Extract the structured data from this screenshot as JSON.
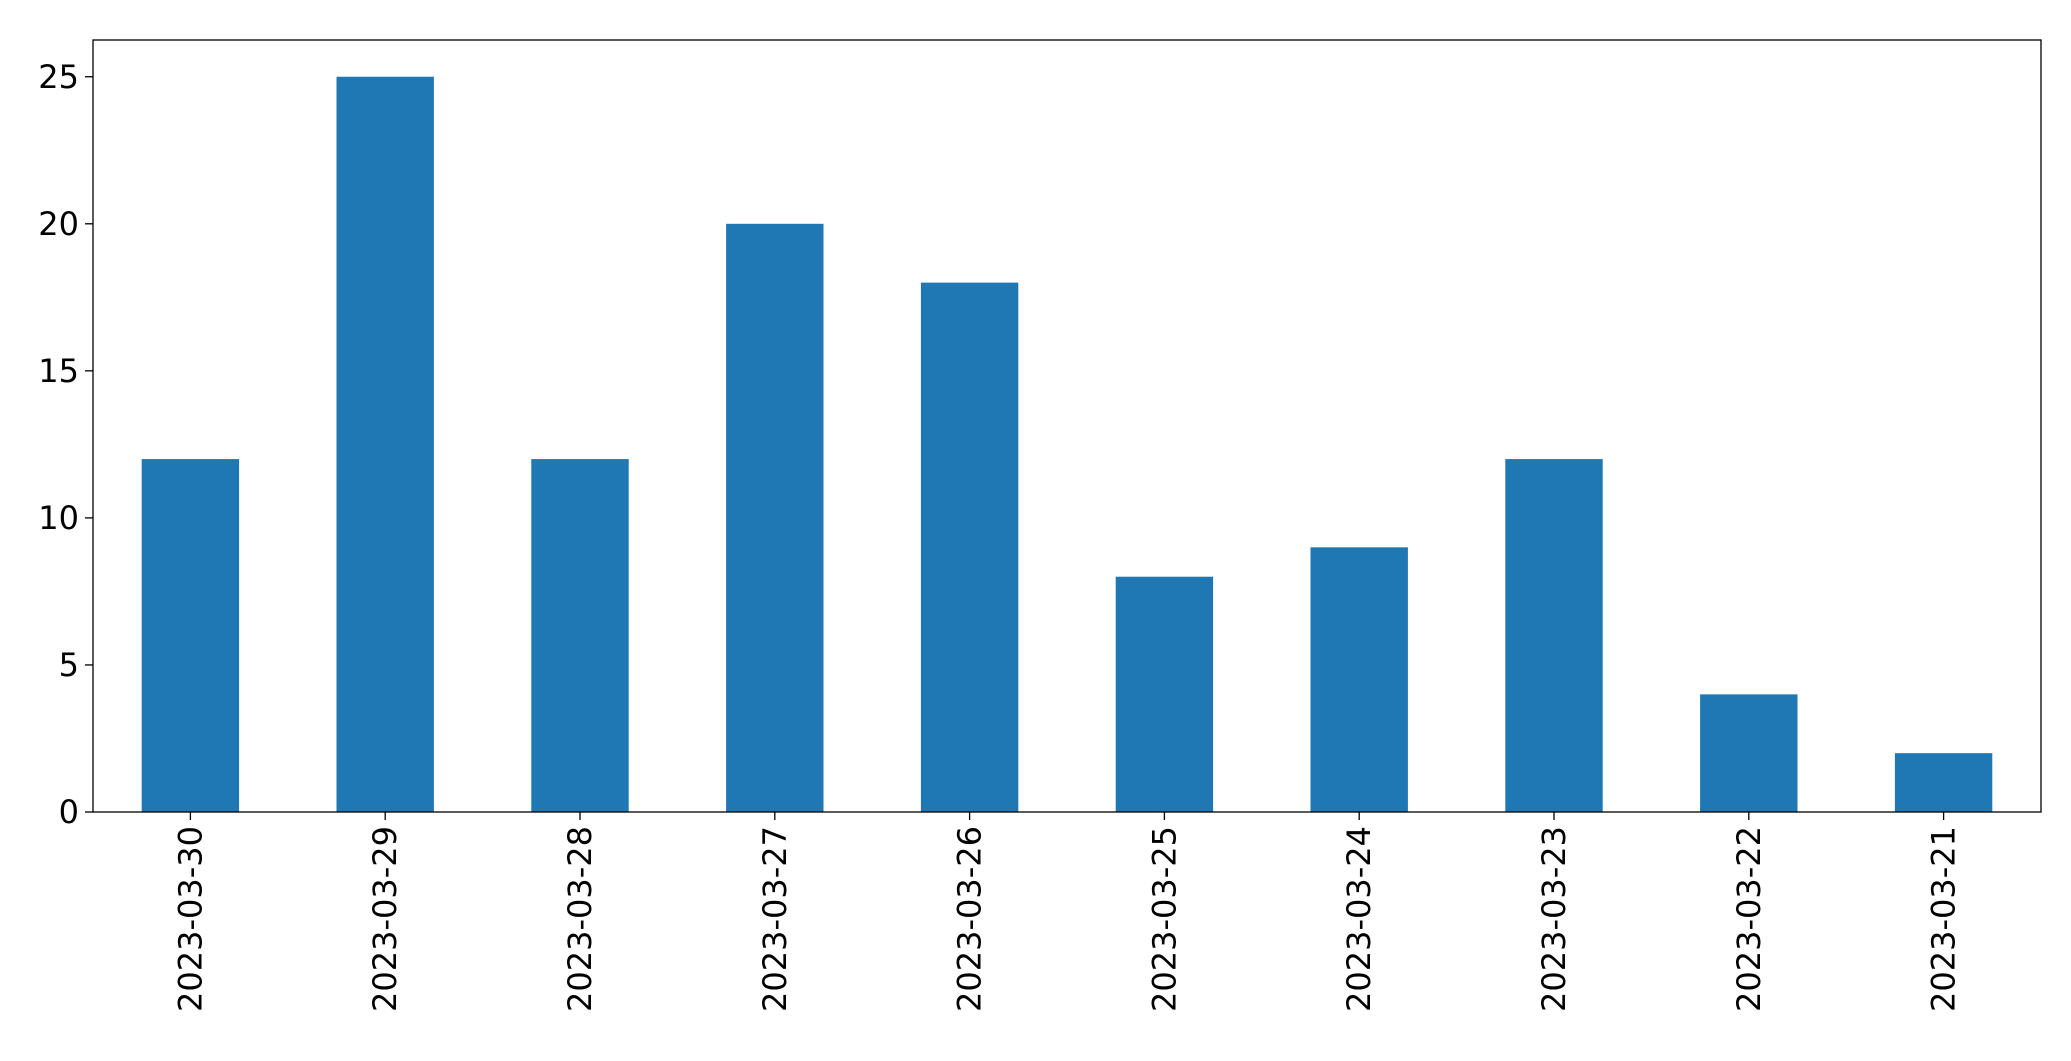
{
  "chart_data": {
    "type": "bar",
    "categories": [
      "2023-03-30",
      "2023-03-29",
      "2023-03-28",
      "2023-03-27",
      "2023-03-26",
      "2023-03-25",
      "2023-03-24",
      "2023-03-23",
      "2023-03-22",
      "2023-03-21"
    ],
    "values": [
      12,
      25,
      12,
      20,
      18,
      8,
      9,
      12,
      4,
      2
    ],
    "color": "#1f77b4",
    "ylim": [
      0,
      26.25
    ],
    "yticks": [
      0,
      5,
      10,
      15,
      20,
      25
    ],
    "grid": false
  }
}
